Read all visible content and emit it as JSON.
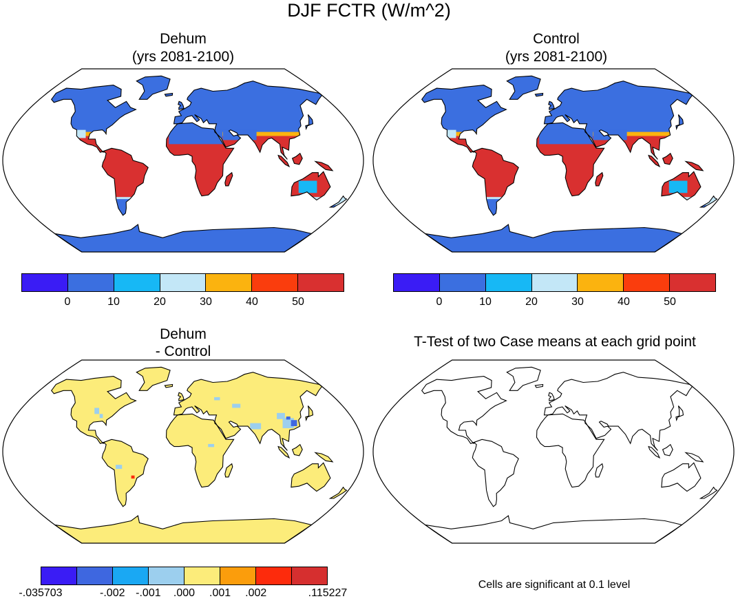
{
  "title": "DJF FCTR (W/m^2)",
  "panels": [
    {
      "id": "dehum",
      "title_line1": "Dehum",
      "title_line2": "(yrs 2081-2100)",
      "fill": "diurnal"
    },
    {
      "id": "control",
      "title_line1": "Control",
      "title_line2": "(yrs 2081-2100)",
      "fill": "diurnal"
    },
    {
      "id": "diff",
      "title_line1": "Dehum",
      "title_line2": "- Control",
      "fill": "diff"
    },
    {
      "id": "ttest",
      "title_line1": "T-Test of two Case means at each grid point",
      "title_line2": "",
      "fill": "none"
    }
  ],
  "colorbars": {
    "main": {
      "colors": [
        "#3a1cf5",
        "#3b6fe0",
        "#17b8f5",
        "#c3e7f7",
        "#fbb30f",
        "#fa3d0d",
        "#d93030"
      ],
      "labels": [
        "0",
        "10",
        "20",
        "30",
        "40",
        "50"
      ]
    },
    "diff": {
      "colors": [
        "#3a1cf5",
        "#3e67e0",
        "#1aa8f3",
        "#9ccfee",
        "#fcec7a",
        "#fb9d0c",
        "#fd2b0c",
        "#d62f2f"
      ],
      "labels": [
        "-.035703",
        "-.002",
        "-.001",
        ".000",
        ".001",
        ".002",
        ".115227"
      ]
    }
  },
  "footnote": "Cells are significant at 0.1 level"
}
